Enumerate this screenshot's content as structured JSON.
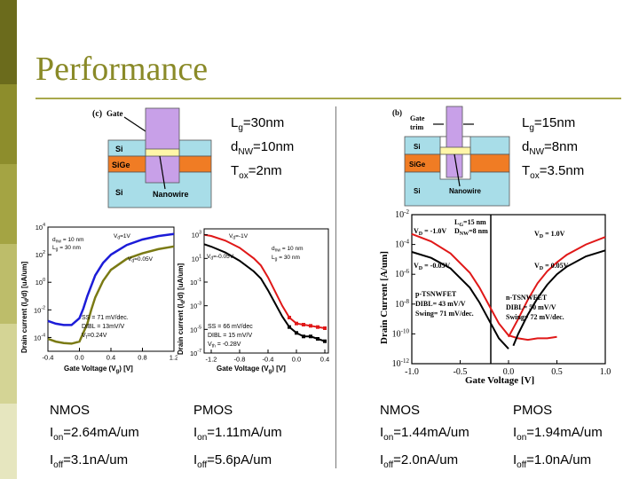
{
  "title": "Performance",
  "colors": {
    "band": [
      "#6b6b1c",
      "#8d8d2c",
      "#a4a443",
      "#bdbd6a",
      "#d4d495",
      "#e6e6bf"
    ],
    "title": "#8a8a28",
    "gate": "#c8a0e8",
    "si": "#a8dde8",
    "sige": "#f07c24",
    "nanowire": "#fff6a8",
    "nmos_curve": "#1c1cd8",
    "nmos_curve2": "#7a7a14",
    "red_curve": "#e01818"
  },
  "left": {
    "device": {
      "panel_label": "(c)",
      "gate": "Gate",
      "si": "Si",
      "sige": "SiGe",
      "si_bottom": "Si",
      "nanowire": "Nanowire"
    },
    "params": {
      "lg": {
        "sym": "L",
        "sub": "g",
        "val": "=30nm"
      },
      "dnw": {
        "sym": "d",
        "sub": "NW",
        "val": "=10nm"
      },
      "tox": {
        "sym": "T",
        "sub": "ox",
        "val": "=2nm"
      }
    },
    "nmos_chart": {
      "ylabel": "Drain current (I",
      "ylabel_rest": "/d) [uA/um]",
      "xlabel": "Gate Voltage (V",
      "xlabel_rest": ") [V]",
      "vd_high": "V",
      "vd_high_rest": "=1V",
      "vd_low": "V",
      "vd_low_rest": "=0.05V",
      "legend1": "d",
      "legend1_rest": " = 10 nm",
      "legend2": "L",
      "legend2_rest": " = 30 nm",
      "ss": "SS = 71 mV/dec.",
      "dibl": "DIBL = 13mV/V",
      "vt": "V",
      "vt_rest": "=0.24V",
      "xticks": [
        "-0.4",
        "0.0",
        "0.4",
        "0.8",
        "1.2"
      ],
      "ytick_base": "10",
      "ytick_exps": [
        "4",
        "2",
        "0",
        "-2",
        "-4"
      ]
    },
    "pmos_chart": {
      "ylabel": "Drain current (I",
      "ylabel_rest": "/d) [uA/um]",
      "xlabel": "Gate Voltage (V",
      "xlabel_rest": ") [V]",
      "vd_high": "V",
      "vd_high_rest": "=-1V",
      "vd_low": "V",
      "vd_low_rest": "=-0.05V",
      "legend1": "d",
      "legend1_rest": " = 10 nm",
      "legend2": "L",
      "legend2_rest": " = 30 nm",
      "ss": "SS = 66 mV/dec",
      "dibl": "DIBL = 15 mV/V",
      "vt": "V",
      "vt_rest": " = -0.28V",
      "xticks": [
        "-1.2",
        "-0.8",
        "-0.4",
        "0.0",
        "0.4"
      ],
      "ytick_base": "10",
      "ytick_exps": [
        "3",
        "1",
        "-1",
        "-3",
        "-5",
        "-7"
      ]
    },
    "nmos_metrics": {
      "type": "NMOS",
      "on": {
        "sym": "I",
        "sub": "on",
        "val": "=2.64mA/um"
      },
      "off": {
        "sym": "I",
        "sub": "off",
        "val": "=3.1nA/um"
      }
    },
    "pmos_metrics": {
      "type": "PMOS",
      "on": {
        "sym": "I",
        "sub": "on",
        "val": "=1.11mA/um"
      },
      "off": {
        "sym": "I",
        "sub": "off",
        "val": "=5.6pA/um"
      }
    }
  },
  "right": {
    "device": {
      "panel_label": "(b)",
      "gate": "Gate",
      "trim": "trim",
      "si": "Si",
      "sige": "SiGe",
      "si_bottom": "Si",
      "nanowire": "Nanowire"
    },
    "params": {
      "lg": {
        "sym": "L",
        "sub": "g",
        "val": "=15nm"
      },
      "dnw": {
        "sym": "d",
        "sub": "NW",
        "val": "=8nm"
      },
      "tox": {
        "sym": "T",
        "sub": "ox",
        "val": "=3.5nm"
      }
    },
    "chart": {
      "ylabel": "Drain Current [A/um]",
      "xlabel": "Gate Voltage [V]",
      "lg": "L",
      "lg_rest": "=15 nm",
      "dnw": "D",
      "dnw_rest": "=8 nm",
      "vd_p_high": "V",
      "vd_p_high_rest": " = -1.0V",
      "vd_p_low": "V",
      "vd_p_low_rest": " = -0.05V",
      "vd_n_high": "V",
      "vd_n_high_rest": " = 1.0V",
      "vd_n_low": "V",
      "vd_n_low_rest": " = 0.05V",
      "p_name": "p-TSNWFET",
      "p_dibl": "DIBL= 43 mV/V",
      "p_swing": "Swing= 71 mV/dec.",
      "n_name": "n-TSNWFET",
      "n_dibl": "DIBL= 50 mV/V",
      "n_swing": "Swing= 72 mV/dec.",
      "xticks": [
        "-1.0",
        "-0.5",
        "0.0",
        "0.5",
        "1.0"
      ],
      "ytick_base": "10",
      "ytick_exps": [
        "-2",
        "-4",
        "-6",
        "-8",
        "-10",
        "-12"
      ]
    },
    "nmos_metrics": {
      "type": "NMOS",
      "on": {
        "sym": "I",
        "sub": "on",
        "val": "=1.44mA/um"
      },
      "off": {
        "sym": "I",
        "sub": "off",
        "val": "=2.0nA/um"
      }
    },
    "pmos_metrics": {
      "type": "PMOS",
      "on": {
        "sym": "I",
        "sub": "on",
        "val": "=1.94mA/um"
      },
      "off": {
        "sym": "I",
        "sub": "off",
        "val": "=1.0nA/um"
      }
    }
  },
  "chart_data": [
    {
      "type": "line",
      "title": "",
      "xlabel": "Gate Voltage (Vg) [V]",
      "ylabel": "Drain current (Id/d) [uA/um]",
      "xlim": [
        -0.4,
        1.2
      ],
      "ylim_log10": [
        -5,
        4
      ],
      "series": [
        {
          "name": "Vd=1V",
          "color": "#1c1cd8",
          "x": [
            -0.4,
            -0.3,
            -0.2,
            -0.1,
            0.0,
            0.05,
            0.1,
            0.2,
            0.3,
            0.4,
            0.6,
            0.8,
            1.0,
            1.2
          ],
          "log10_y": [
            -2.8,
            -3.0,
            -3.1,
            -3.1,
            -2.6,
            -1.9,
            -1.0,
            0.5,
            1.4,
            2.0,
            2.7,
            3.1,
            3.35,
            3.5
          ]
        },
        {
          "name": "Vd=0.05V",
          "color": "#7a7a14",
          "x": [
            -0.4,
            -0.3,
            -0.2,
            -0.1,
            0.0,
            0.1,
            0.15,
            0.2,
            0.3,
            0.4,
            0.6,
            0.8,
            1.0,
            1.2
          ],
          "log10_y": [
            -4.1,
            -4.3,
            -4.4,
            -4.45,
            -4.3,
            -3.0,
            -2.0,
            -1.1,
            0.1,
            0.9,
            1.7,
            2.1,
            2.4,
            2.6
          ]
        }
      ]
    },
    {
      "type": "line",
      "title": "",
      "xlabel": "Gate Voltage (Vg) [V]",
      "ylabel": "Drain current (Id/d) [uA/um]",
      "xlim": [
        -1.3,
        0.45
      ],
      "ylim_log10": [
        -7,
        3.5
      ],
      "series": [
        {
          "name": "Vd=-1V",
          "color": "#e01818",
          "x": [
            -1.3,
            -1.2,
            -1.0,
            -0.8,
            -0.6,
            -0.5,
            -0.4,
            -0.3,
            -0.2,
            -0.1,
            0.0,
            0.1,
            0.2,
            0.3,
            0.4
          ],
          "log10_y": [
            3.0,
            2.9,
            2.5,
            1.9,
            1.0,
            0.4,
            -0.6,
            -1.8,
            -3.0,
            -4.0,
            -4.5,
            -4.6,
            -4.7,
            -4.8,
            -4.9
          ]
        },
        {
          "name": "Vd=-0.05V",
          "color": "#000000",
          "x": [
            -1.3,
            -1.2,
            -1.0,
            -0.8,
            -0.6,
            -0.5,
            -0.4,
            -0.3,
            -0.2,
            -0.1,
            0.0,
            0.1,
            0.2,
            0.3,
            0.4
          ],
          "log10_y": [
            2.2,
            2.0,
            1.5,
            0.8,
            -0.1,
            -0.7,
            -1.7,
            -2.8,
            -3.9,
            -4.8,
            -5.3,
            -5.6,
            -5.6,
            -5.8,
            -6.0
          ]
        }
      ]
    },
    {
      "type": "line",
      "title": "",
      "xlabel": "Gate Voltage [V]",
      "ylabel": "Drain Current [A/um]",
      "xlim": [
        -1.0,
        1.0
      ],
      "ylim_log10": [
        -12,
        -2
      ],
      "series": [
        {
          "name": "p VD=-1.0V",
          "color": "#e01818",
          "x": [
            -1.0,
            -0.8,
            -0.6,
            -0.4,
            -0.3,
            -0.2,
            -0.1,
            0.0,
            0.1,
            0.2,
            0.3,
            0.4,
            0.5
          ],
          "log10_y": [
            -3.3,
            -3.8,
            -4.6,
            -5.9,
            -6.9,
            -8.1,
            -9.3,
            -10.1,
            -10.3,
            -10.4,
            -10.3,
            -10.3,
            -10.2
          ]
        },
        {
          "name": "p VD=-0.05V",
          "color": "#000000",
          "x": [
            -1.0,
            -0.8,
            -0.6,
            -0.4,
            -0.3,
            -0.2,
            -0.1,
            0.0
          ],
          "log10_y": [
            -4.5,
            -4.9,
            -5.6,
            -6.9,
            -7.9,
            -9.1,
            -10.3,
            -11.0
          ]
        },
        {
          "name": "n VD=1.0V",
          "color": "#e01818",
          "x": [
            0.0,
            0.1,
            0.2,
            0.3,
            0.4,
            0.5,
            0.6,
            0.8,
            1.0
          ],
          "log10_y": [
            -10.2,
            -9.0,
            -7.7,
            -6.6,
            -5.8,
            -5.2,
            -4.7,
            -4.0,
            -3.5
          ]
        },
        {
          "name": "n VD=0.05V",
          "color": "#000000",
          "x": [
            0.05,
            0.1,
            0.2,
            0.3,
            0.4,
            0.5,
            0.6,
            0.8,
            1.0
          ],
          "log10_y": [
            -10.8,
            -10.0,
            -8.7,
            -7.6,
            -6.7,
            -6.0,
            -5.5,
            -4.8,
            -4.4
          ]
        }
      ]
    }
  ]
}
